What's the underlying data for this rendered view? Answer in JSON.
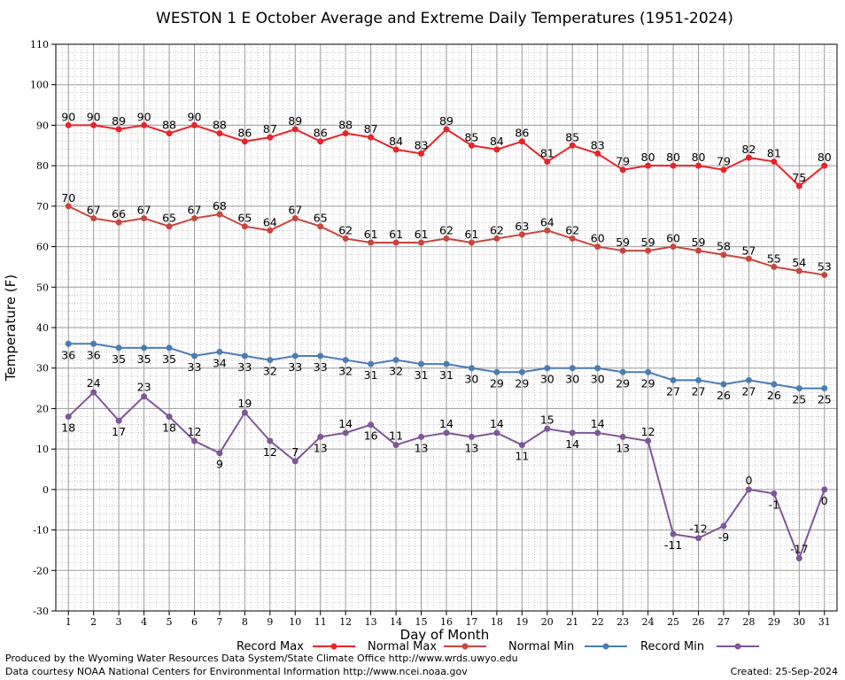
{
  "chart_data": {
    "type": "line",
    "title": "WESTON 1 E October Average and Extreme Daily Temperatures (1951-2024)",
    "xlabel": "Day of Month",
    "ylabel": "Temperature (F)",
    "xlim": [
      0.5,
      31.5
    ],
    "ylim": [
      -30,
      110
    ],
    "y_ticks": [
      -30,
      -20,
      -10,
      0,
      10,
      20,
      30,
      40,
      50,
      60,
      70,
      80,
      90,
      100,
      110
    ],
    "categories": [
      "1",
      "2",
      "3",
      "4",
      "5",
      "6",
      "7",
      "8",
      "9",
      "10",
      "11",
      "12",
      "13",
      "14",
      "15",
      "16",
      "17",
      "18",
      "19",
      "20",
      "21",
      "22",
      "23",
      "24",
      "25",
      "26",
      "27",
      "28",
      "29",
      "30",
      "31"
    ],
    "grid": true,
    "legend_position": "bottom",
    "series": [
      {
        "name": "Record Max",
        "color": "#e8242b",
        "label_position": "above",
        "values": [
          90,
          90,
          89,
          90,
          88,
          90,
          88,
          86,
          87,
          89,
          86,
          88,
          87,
          84,
          83,
          89,
          85,
          84,
          86,
          81,
          85,
          83,
          79,
          80,
          80,
          80,
          79,
          82,
          81,
          75,
          80
        ]
      },
      {
        "name": "Normal Max",
        "color": "#c8463e",
        "label_position": "above",
        "values": [
          70,
          67,
          66,
          67,
          65,
          67,
          68,
          65,
          64,
          67,
          65,
          62,
          61,
          61,
          61,
          62,
          61,
          62,
          63,
          64,
          62,
          60,
          59,
          59,
          60,
          59,
          58,
          57,
          55,
          54,
          53
        ]
      },
      {
        "name": "Normal Min",
        "color": "#4a7db4",
        "label_position": "below",
        "values": [
          36,
          36,
          35,
          35,
          35,
          33,
          34,
          33,
          32,
          33,
          33,
          32,
          31,
          32,
          31,
          31,
          30,
          29,
          29,
          30,
          30,
          30,
          29,
          29,
          27,
          27,
          26,
          27,
          26,
          25,
          25
        ]
      },
      {
        "name": "Record Min",
        "color": "#7e5797",
        "label_position": "alternating",
        "values": [
          18,
          24,
          17,
          23,
          18,
          12,
          9,
          19,
          12,
          7,
          13,
          14,
          16,
          11,
          13,
          14,
          13,
          14,
          11,
          15,
          14,
          14,
          13,
          12,
          -11,
          -12,
          -9,
          0,
          -1,
          -17,
          0
        ]
      }
    ]
  },
  "footer": {
    "produced_by": "Produced by the Wyoming Water Resources Data System/State Climate Office http://www.wrds.uwyo.edu",
    "data_courtesy": "Data courtesy NOAA National Centers for Environmental Information http://www.ncei.noaa.gov",
    "created": "Created:  25-Sep-2024"
  }
}
